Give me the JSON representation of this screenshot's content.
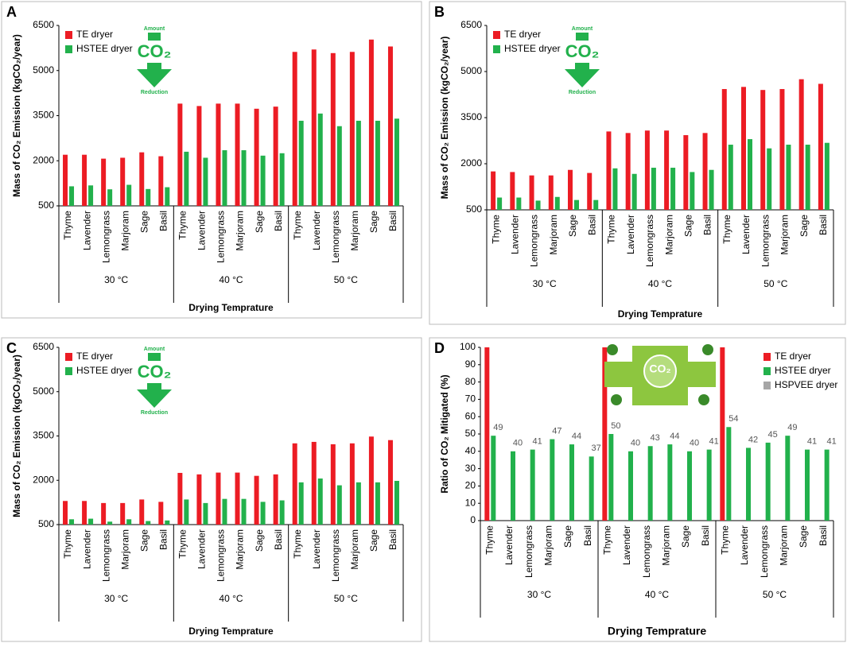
{
  "chart_data": [
    {
      "type": "bar",
      "panel": "A",
      "ylabel": "Mass of CO₂ Emission (kgCO₂/year)",
      "xlabel": "Drying Temprature",
      "groups": [
        "30 °C",
        "40 °C",
        "50 °C"
      ],
      "categories": [
        "Thyme",
        "Lavender",
        "Lemongrass",
        "Marjoram",
        "Sage",
        "Basil",
        "Thyme",
        "Lavender",
        "Lemongrass",
        "Marjoram",
        "Sage",
        "Basil",
        "Thyme",
        "Lavender",
        "Lemongrass",
        "Marjoram",
        "Sage",
        "Basil"
      ],
      "series": [
        {
          "name": "TE dryer",
          "color": "#ec1c24",
          "values": [
            2200,
            2200,
            2070,
            2100,
            2280,
            2150,
            3900,
            3820,
            3900,
            3900,
            3730,
            3800,
            5620,
            5700,
            5580,
            5620,
            6030,
            5800
          ]
        },
        {
          "name": "HSTEE dryer",
          "color": "#22b14c",
          "values": [
            1150,
            1180,
            1050,
            1200,
            1060,
            1120,
            2300,
            2100,
            2350,
            2350,
            2170,
            2250,
            3330,
            3570,
            3150,
            3330,
            3330,
            3400
          ]
        }
      ],
      "ylim": [
        500,
        6500
      ],
      "yticks": [
        500,
        2000,
        3500,
        5000,
        6500
      ],
      "legend": "upper left",
      "icon": {
        "top": "Amount",
        "main": "CO₂",
        "bottom": "Reduction"
      }
    },
    {
      "type": "bar",
      "panel": "B",
      "ylabel": "Mass of CO₂ Emission (kgCO₂/year)",
      "xlabel": "Drying Temprature",
      "groups": [
        "30 °C",
        "40 °C",
        "50 °C"
      ],
      "categories": [
        "Thyme",
        "Lavender",
        "Lemongrass",
        "Marjoram",
        "Sage",
        "Basil",
        "Thyme",
        "Lavender",
        "Lemongrass",
        "Marjoram",
        "Sage",
        "Basil",
        "Thyme",
        "Lavender",
        "Lemongrass",
        "Marjoram",
        "Sage",
        "Basil"
      ],
      "series": [
        {
          "name": "TE dryer",
          "color": "#ec1c24",
          "values": [
            1750,
            1730,
            1620,
            1620,
            1800,
            1700,
            3050,
            3000,
            3080,
            3080,
            2930,
            3000,
            4430,
            4500,
            4400,
            4430,
            4750,
            4600
          ]
        },
        {
          "name": "HSTEE dryer",
          "color": "#22b14c",
          "values": [
            900,
            900,
            800,
            920,
            820,
            820,
            1850,
            1670,
            1870,
            1870,
            1730,
            1800,
            2620,
            2800,
            2500,
            2620,
            2620,
            2680
          ]
        }
      ],
      "ylim": [
        500,
        6500
      ],
      "yticks": [
        500,
        2000,
        3500,
        5000,
        6500
      ],
      "legend": "upper left",
      "icon": {
        "top": "Amount",
        "main": "CO₂",
        "bottom": "Reduction"
      }
    },
    {
      "type": "bar",
      "panel": "C",
      "ylabel": "Mass of CO₂ Emission (kgCO₂/year)",
      "xlabel": "Drying Temprature",
      "groups": [
        "30 °C",
        "40 °C",
        "50 °C"
      ],
      "categories": [
        "Thyme",
        "Lavender",
        "Lemongrass",
        "Marjoram",
        "Sage",
        "Basil",
        "Thyme",
        "Lavender",
        "Lemongrass",
        "Marjoram",
        "Sage",
        "Basil",
        "Thyme",
        "Lavender",
        "Lemongrass",
        "Marjoram",
        "Sage",
        "Basil"
      ],
      "series": [
        {
          "name": "TE dryer",
          "color": "#ec1c24",
          "values": [
            1300,
            1300,
            1230,
            1230,
            1350,
            1270,
            2250,
            2200,
            2260,
            2260,
            2150,
            2200,
            3250,
            3300,
            3220,
            3250,
            3480,
            3360
          ]
        },
        {
          "name": "HSTEE dryer",
          "color": "#22b14c",
          "values": [
            680,
            700,
            600,
            680,
            620,
            640,
            1350,
            1230,
            1370,
            1370,
            1270,
            1320,
            1930,
            2060,
            1830,
            1930,
            1930,
            1980
          ]
        }
      ],
      "ylim": [
        500,
        6500
      ],
      "yticks": [
        500,
        2000,
        3500,
        5000,
        6500
      ],
      "legend": "upper left",
      "icon": {
        "top": "Amount",
        "main": "CO₂",
        "bottom": "Reduction"
      }
    },
    {
      "type": "bar",
      "panel": "D",
      "ylabel": "Ratio of CO₂ Mitigated (%)",
      "xlabel": "Drying Temprature",
      "groups": [
        "30 °C",
        "40 °C",
        "50 °C"
      ],
      "categories": [
        "Thyme",
        "Lavender",
        "Lemongrass",
        "Marjoram",
        "Sage",
        "Basil",
        "Thyme",
        "Lavender",
        "Lemongrass",
        "Marjoram",
        "Sage",
        "Basil",
        "Thyme",
        "Lavender",
        "Lemongrass",
        "Marjoram",
        "Sage",
        "Basil"
      ],
      "series": [
        {
          "name": "TE dryer",
          "color": "#ec1c24",
          "values": [
            100,
            null,
            null,
            null,
            null,
            null,
            100,
            null,
            null,
            null,
            null,
            null,
            100,
            null,
            null,
            null,
            null,
            null
          ]
        },
        {
          "name": "HSTEE dryer",
          "color": "#22b14c",
          "values": [
            49,
            40,
            41,
            47,
            44,
            37,
            50,
            40,
            43,
            44,
            40,
            41,
            54,
            42,
            45,
            49,
            41,
            41
          ],
          "data_labels": true
        },
        {
          "name": "HSPVEE dryer",
          "color": "#a6a6a6",
          "values": [
            null,
            null,
            null,
            null,
            null,
            null,
            null,
            null,
            null,
            null,
            null,
            null,
            null,
            null,
            null,
            null,
            null,
            null
          ]
        }
      ],
      "ylim": [
        0,
        100
      ],
      "yticks": [
        0,
        10,
        20,
        30,
        40,
        50,
        60,
        70,
        80,
        90,
        100
      ],
      "legend": "upper right",
      "icon": {
        "main": "CO₂"
      }
    }
  ]
}
